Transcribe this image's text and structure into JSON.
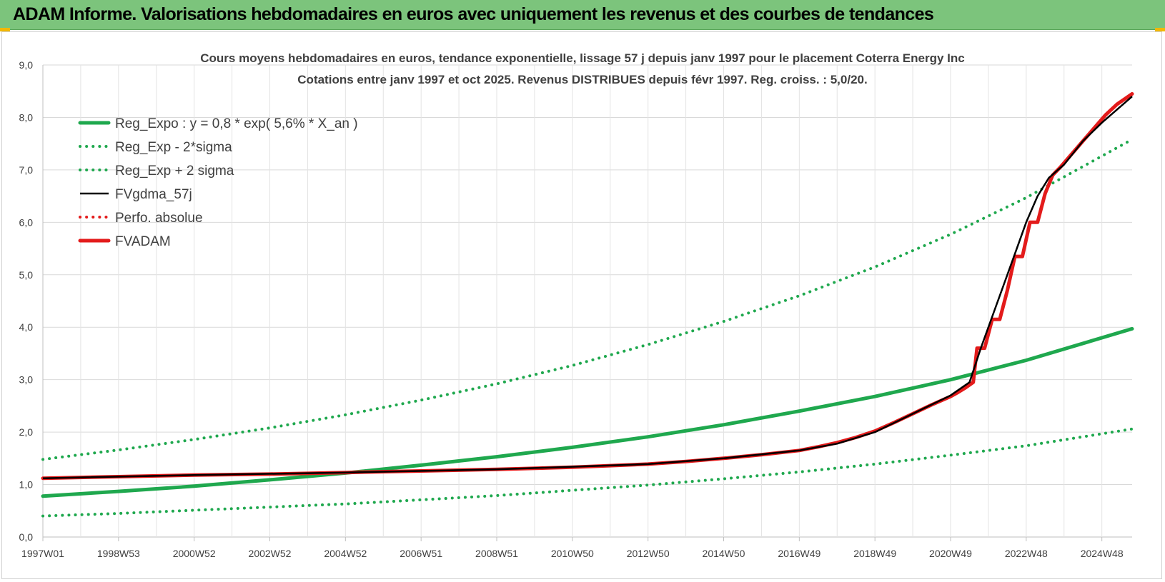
{
  "header": {
    "title": "ADAM Informe. Valorisations hebdomadaires en euros avec uniquement les revenus et des courbes de tendances"
  },
  "chart_data": {
    "type": "line",
    "title": "Cours moyens hebdomadaires en euros, tendance exponentielle, lissage 57 j depuis janv 1997 pour le placement Coterra Energy Inc",
    "subtitle": "Cotations entre janv 1997 et oct 2025. Revenus DISTRIBUES depuis févr 1997. Reg. croiss. : 5,0/20.",
    "xlabel": "",
    "ylabel": "",
    "xlim": [
      1997.0,
      2025.8
    ],
    "ylim": [
      0,
      9
    ],
    "y_ticks": [
      "0,0",
      "1,0",
      "2,0",
      "3,0",
      "4,0",
      "5,0",
      "6,0",
      "7,0",
      "8,0",
      "9,0"
    ],
    "x_ticks": [
      {
        "label": "1997W01",
        "x": 1997.0
      },
      {
        "label": "1998W53",
        "x": 1999.0
      },
      {
        "label": "2000W52",
        "x": 2001.0
      },
      {
        "label": "2002W52",
        "x": 2003.0
      },
      {
        "label": "2004W52",
        "x": 2005.0
      },
      {
        "label": "2006W51",
        "x": 2007.0
      },
      {
        "label": "2008W51",
        "x": 2009.0
      },
      {
        "label": "2010W50",
        "x": 2011.0
      },
      {
        "label": "2012W50",
        "x": 2013.0
      },
      {
        "label": "2014W50",
        "x": 2015.0
      },
      {
        "label": "2016W49",
        "x": 2017.0
      },
      {
        "label": "2018W49",
        "x": 2019.0
      },
      {
        "label": "2020W49",
        "x": 2021.0
      },
      {
        "label": "2022W48",
        "x": 2023.0
      },
      {
        "label": "2024W48",
        "x": 2025.0
      }
    ],
    "grid": true,
    "legend_position": "top-left",
    "series": [
      {
        "name": "Reg_Expo : y = 0,8 * exp( 5,6% *  X_an )",
        "style": "solid",
        "color": "#1fa84e",
        "x": [
          1997.0,
          1999.0,
          2001.0,
          2003.0,
          2005.0,
          2007.0,
          2009.0,
          2011.0,
          2013.0,
          2015.0,
          2017.0,
          2019.0,
          2021.0,
          2023.0,
          2025.8
        ],
        "y": [
          0.78,
          0.87,
          0.97,
          1.09,
          1.22,
          1.37,
          1.53,
          1.71,
          1.91,
          2.14,
          2.4,
          2.68,
          3.0,
          3.37,
          3.97
        ]
      },
      {
        "name": "Reg_Exp - 2*sigma",
        "style": "dotted",
        "color": "#1fa84e",
        "x": [
          1997.0,
          1999.0,
          2001.0,
          2003.0,
          2005.0,
          2007.0,
          2009.0,
          2011.0,
          2013.0,
          2015.0,
          2017.0,
          2019.0,
          2021.0,
          2023.0,
          2025.8
        ],
        "y": [
          0.4,
          0.45,
          0.51,
          0.57,
          0.63,
          0.71,
          0.79,
          0.89,
          0.99,
          1.11,
          1.24,
          1.39,
          1.56,
          1.74,
          2.06
        ]
      },
      {
        "name": "Reg_Exp + 2 sigma",
        "style": "dotted",
        "color": "#1fa84e",
        "x": [
          1997.0,
          1999.0,
          2001.0,
          2003.0,
          2005.0,
          2007.0,
          2009.0,
          2011.0,
          2013.0,
          2015.0,
          2017.0,
          2019.0,
          2021.0,
          2023.0,
          2025.8
        ],
        "y": [
          1.48,
          1.66,
          1.86,
          2.08,
          2.33,
          2.61,
          2.92,
          3.27,
          3.67,
          4.11,
          4.6,
          5.15,
          5.77,
          6.47,
          7.58
        ]
      },
      {
        "name": "FVgdma_57j",
        "style": "solid-thin",
        "color": "#000000",
        "x": [
          1997.0,
          2001.0,
          2005.0,
          2009.0,
          2013.0,
          2015.0,
          2017.0,
          2018.0,
          2019.0,
          2020.0,
          2021.0,
          2021.5,
          2021.8,
          2022.1,
          2022.4,
          2022.7,
          2023.0,
          2023.3,
          2023.6,
          2024.0,
          2024.5,
          2025.0,
          2025.8
        ],
        "y": [
          1.12,
          1.18,
          1.23,
          1.29,
          1.39,
          1.5,
          1.65,
          1.78,
          2.0,
          2.35,
          2.7,
          2.95,
          3.6,
          4.2,
          4.8,
          5.4,
          6.0,
          6.5,
          6.85,
          7.1,
          7.55,
          7.9,
          8.4
        ]
      },
      {
        "name": "Perfo. absolue",
        "style": "dotted",
        "color": "#e31b1b",
        "x": [],
        "y": []
      },
      {
        "name": "FVADAM",
        "style": "solid",
        "color": "#e31b1b",
        "x": [
          1997.0,
          1999.0,
          2001.0,
          2003.0,
          2005.0,
          2007.0,
          2009.0,
          2011.0,
          2013.0,
          2014.0,
          2015.0,
          2016.0,
          2017.0,
          2017.5,
          2018.0,
          2018.5,
          2019.0,
          2019.5,
          2020.0,
          2020.5,
          2021.0,
          2021.2,
          2021.4,
          2021.6,
          2021.7,
          2021.9,
          2022.1,
          2022.3,
          2022.5,
          2022.7,
          2022.9,
          2023.1,
          2023.3,
          2023.5,
          2023.7,
          2023.9,
          2024.2,
          2024.5,
          2024.8,
          2025.1,
          2025.4,
          2025.8
        ],
        "y": [
          1.12,
          1.15,
          1.18,
          1.2,
          1.23,
          1.26,
          1.29,
          1.33,
          1.39,
          1.44,
          1.5,
          1.57,
          1.65,
          1.72,
          1.8,
          1.9,
          2.02,
          2.18,
          2.35,
          2.52,
          2.68,
          2.76,
          2.85,
          2.95,
          3.6,
          3.6,
          4.15,
          4.15,
          4.7,
          5.35,
          5.35,
          6.0,
          6.0,
          6.55,
          6.9,
          7.05,
          7.3,
          7.55,
          7.8,
          8.05,
          8.25,
          8.45
        ]
      }
    ]
  }
}
